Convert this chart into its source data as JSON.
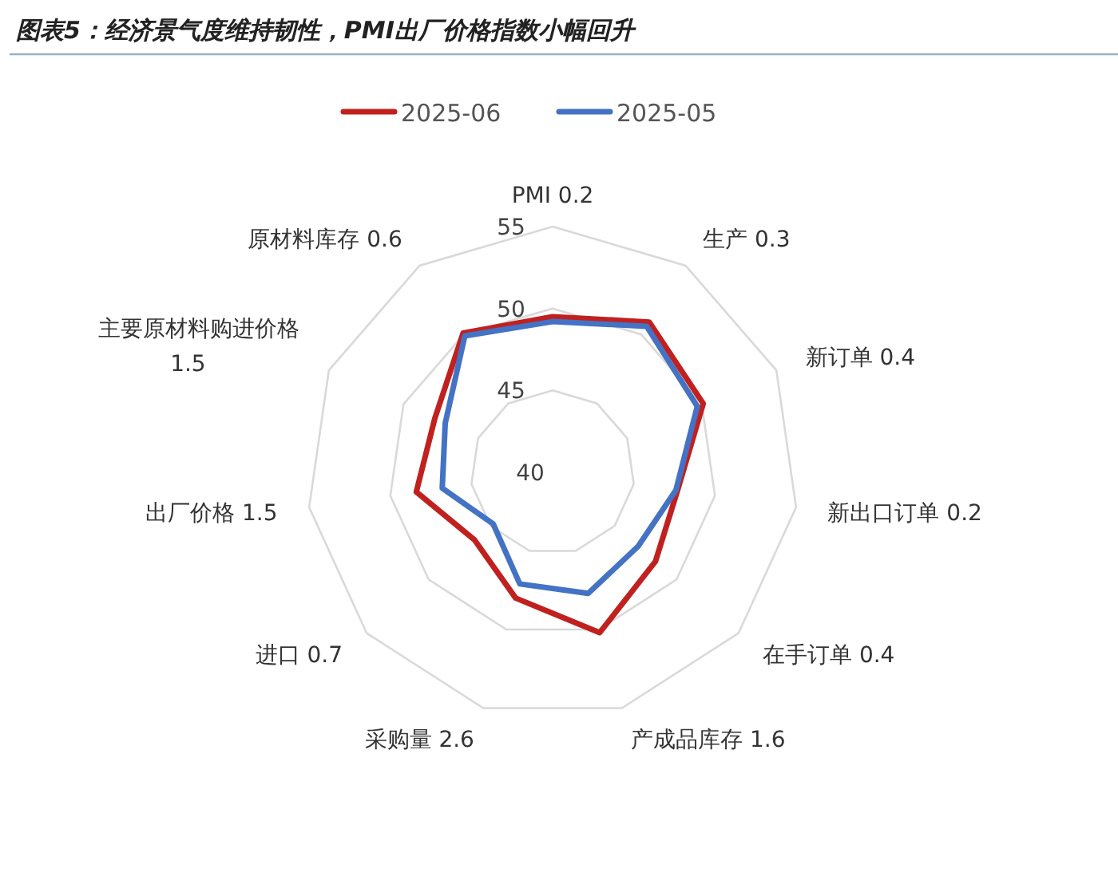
{
  "chart_data": {
    "type": "radar",
    "title": "图表5：经济景气度维持韧性，PMI出厂价格指数小幅回升",
    "categories": [
      "PMI 0.2",
      "生产 0.3",
      "新订单 0.4",
      "新出口订单 0.2",
      "在手订单 0.4",
      "产成品库存 1.6",
      "采购量 2.6",
      "进口 0.7",
      "出厂价格 1.5",
      "主要原材料购进价格 1.5",
      "原材料库存 0.6"
    ],
    "series": [
      {
        "name": "2025-06",
        "color": "#c0211f",
        "values": [
          49.5,
          50.9,
          50.1,
          47.7,
          48.3,
          50.2,
          48.0,
          46.3,
          48.4,
          47.9,
          50.1
        ]
      },
      {
        "name": "2025-05",
        "color": "#4472c4",
        "values": [
          49.2,
          50.6,
          49.7,
          47.6,
          46.9,
          47.7,
          47.1,
          44.8,
          46.8,
          47.2,
          49.9
        ]
      }
    ],
    "ylim": [
      40,
      55
    ],
    "yticks": [
      40,
      45,
      50,
      55
    ],
    "legend": "top",
    "grid": true,
    "marker": "none"
  }
}
